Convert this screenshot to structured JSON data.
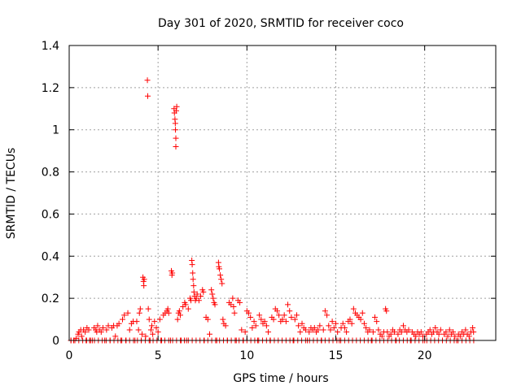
{
  "chart_data": {
    "type": "scatter",
    "title": "Day 301 of 2020, SRMTID for receiver coco",
    "xlabel": "GPS time / hours",
    "ylabel": "SRMTID / TECUs",
    "xlim": [
      0,
      24
    ],
    "ylim": [
      0,
      1.4
    ],
    "xticks": [
      0,
      5,
      10,
      15,
      20
    ],
    "xtick_labels": [
      "0",
      "5",
      "10",
      "15",
      "20"
    ],
    "yticks": [
      0,
      0.2,
      0.4,
      0.6,
      0.8,
      1,
      1.2,
      1.4
    ],
    "ytick_labels": [
      "0",
      "0.2",
      "0.4",
      "0.6",
      "0.8",
      "1",
      "1.2",
      "1.4"
    ],
    "grid": true,
    "marker": "+",
    "series": [
      {
        "name": "SRMTID",
        "color": "#ff0000",
        "points": [
          [
            0.1,
            0.0
          ],
          [
            0.25,
            0.0
          ],
          [
            0.4,
            0.01
          ],
          [
            0.5,
            0.03
          ],
          [
            0.55,
            0.04
          ],
          [
            0.65,
            0.05
          ],
          [
            0.7,
            0.02
          ],
          [
            0.8,
            0.05
          ],
          [
            0.9,
            0.04
          ],
          [
            0.95,
            0.0
          ],
          [
            1.0,
            0.06
          ],
          [
            1.1,
            0.05
          ],
          [
            1.15,
            0.0
          ],
          [
            1.3,
            0.0
          ],
          [
            1.4,
            0.06
          ],
          [
            1.5,
            0.05
          ],
          [
            1.55,
            0.04
          ],
          [
            1.6,
            0.07
          ],
          [
            1.7,
            0.05
          ],
          [
            1.8,
            0.04
          ],
          [
            1.9,
            0.06
          ],
          [
            2.0,
            0.0
          ],
          [
            2.1,
            0.05
          ],
          [
            2.2,
            0.07
          ],
          [
            2.3,
            0.0
          ],
          [
            2.4,
            0.06
          ],
          [
            2.5,
            0.07
          ],
          [
            2.6,
            0.02
          ],
          [
            2.7,
            0.07
          ],
          [
            2.8,
            0.08
          ],
          [
            2.9,
            0.0
          ],
          [
            3.0,
            0.1
          ],
          [
            3.1,
            0.12
          ],
          [
            3.2,
            0.0
          ],
          [
            3.3,
            0.13
          ],
          [
            3.4,
            0.05
          ],
          [
            3.5,
            0.08
          ],
          [
            3.6,
            0.09
          ],
          [
            3.7,
            0.0
          ],
          [
            3.8,
            0.09
          ],
          [
            3.9,
            0.05
          ],
          [
            3.95,
            0.13
          ],
          [
            4.0,
            0.15
          ],
          [
            4.05,
            0.0
          ],
          [
            4.1,
            0.03
          ],
          [
            4.15,
            0.3
          ],
          [
            4.18,
            0.28
          ],
          [
            4.2,
            0.26
          ],
          [
            4.22,
            0.29
          ],
          [
            4.3,
            0.02
          ],
          [
            4.4,
            1.235
          ],
          [
            4.42,
            1.16
          ],
          [
            4.45,
            0.15
          ],
          [
            4.5,
            0.1
          ],
          [
            4.55,
            0.0
          ],
          [
            4.6,
            0.05
          ],
          [
            4.65,
            0.07
          ],
          [
            4.7,
            0.03
          ],
          [
            4.8,
            0.09
          ],
          [
            4.9,
            0.06
          ],
          [
            5.0,
            0.04
          ],
          [
            5.1,
            0.1
          ],
          [
            5.2,
            0.0
          ],
          [
            5.3,
            0.12
          ],
          [
            5.4,
            0.13
          ],
          [
            5.5,
            0.14
          ],
          [
            5.55,
            0.15
          ],
          [
            5.6,
            0.13
          ],
          [
            5.7,
            0.0
          ],
          [
            5.75,
            0.33
          ],
          [
            5.78,
            0.31
          ],
          [
            5.8,
            0.32
          ],
          [
            5.9,
            1.1
          ],
          [
            5.92,
            1.08
          ],
          [
            5.95,
            1.05
          ],
          [
            5.97,
            1.03
          ],
          [
            5.98,
            1.0
          ],
          [
            6.0,
            0.96
          ],
          [
            6.0,
            0.92
          ],
          [
            6.02,
            1.09
          ],
          [
            6.05,
            1.11
          ],
          [
            6.1,
            0.1
          ],
          [
            6.15,
            0.13
          ],
          [
            6.2,
            0.14
          ],
          [
            6.25,
            0.12
          ],
          [
            6.3,
            0.0
          ],
          [
            6.4,
            0.16
          ],
          [
            6.5,
            0.18
          ],
          [
            6.55,
            0.17
          ],
          [
            6.6,
            0.0
          ],
          [
            6.7,
            0.15
          ],
          [
            6.8,
            0.2
          ],
          [
            6.85,
            0.19
          ],
          [
            6.9,
            0.38
          ],
          [
            6.92,
            0.36
          ],
          [
            6.95,
            0.32
          ],
          [
            6.97,
            0.29
          ],
          [
            7.0,
            0.26
          ],
          [
            7.02,
            0.23
          ],
          [
            7.05,
            0.21
          ],
          [
            7.1,
            0.19
          ],
          [
            7.15,
            0.2
          ],
          [
            7.2,
            0.22
          ],
          [
            7.3,
            0.19
          ],
          [
            7.4,
            0.21
          ],
          [
            7.5,
            0.24
          ],
          [
            7.55,
            0.23
          ],
          [
            7.6,
            0.0
          ],
          [
            7.7,
            0.11
          ],
          [
            7.8,
            0.1
          ],
          [
            7.9,
            0.03
          ],
          [
            8.0,
            0.24
          ],
          [
            8.05,
            0.22
          ],
          [
            8.1,
            0.2
          ],
          [
            8.15,
            0.18
          ],
          [
            8.2,
            0.17
          ],
          [
            8.3,
            0.0
          ],
          [
            8.4,
            0.37
          ],
          [
            8.42,
            0.35
          ],
          [
            8.45,
            0.34
          ],
          [
            8.5,
            0.31
          ],
          [
            8.55,
            0.29
          ],
          [
            8.6,
            0.27
          ],
          [
            8.65,
            0.1
          ],
          [
            8.7,
            0.08
          ],
          [
            8.8,
            0.07
          ],
          [
            8.9,
            0.0
          ],
          [
            9.0,
            0.18
          ],
          [
            9.1,
            0.17
          ],
          [
            9.2,
            0.2
          ],
          [
            9.25,
            0.16
          ],
          [
            9.3,
            0.13
          ],
          [
            9.4,
            0.0
          ],
          [
            9.5,
            0.19
          ],
          [
            9.6,
            0.18
          ],
          [
            9.7,
            0.05
          ],
          [
            9.8,
            0.0
          ],
          [
            9.9,
            0.04
          ],
          [
            10.0,
            0.14
          ],
          [
            10.1,
            0.13
          ],
          [
            10.2,
            0.11
          ],
          [
            10.3,
            0.06
          ],
          [
            10.4,
            0.09
          ],
          [
            10.5,
            0.07
          ],
          [
            10.6,
            0.0
          ],
          [
            10.7,
            0.12
          ],
          [
            10.8,
            0.1
          ],
          [
            10.9,
            0.08
          ],
          [
            11.0,
            0.09
          ],
          [
            11.1,
            0.07
          ],
          [
            11.2,
            0.04
          ],
          [
            11.3,
            0.0
          ],
          [
            11.4,
            0.11
          ],
          [
            11.5,
            0.1
          ],
          [
            11.6,
            0.15
          ],
          [
            11.7,
            0.14
          ],
          [
            11.8,
            0.12
          ],
          [
            11.9,
            0.09
          ],
          [
            12.0,
            0.1
          ],
          [
            12.1,
            0.12
          ],
          [
            12.2,
            0.09
          ],
          [
            12.3,
            0.17
          ],
          [
            12.4,
            0.14
          ],
          [
            12.5,
            0.11
          ],
          [
            12.6,
            0.0
          ],
          [
            12.7,
            0.1
          ],
          [
            12.8,
            0.12
          ],
          [
            12.9,
            0.07
          ],
          [
            13.0,
            0.04
          ],
          [
            13.1,
            0.08
          ],
          [
            13.2,
            0.06
          ],
          [
            13.3,
            0.05
          ],
          [
            13.4,
            0.0
          ],
          [
            13.5,
            0.04
          ],
          [
            13.6,
            0.06
          ],
          [
            13.7,
            0.05
          ],
          [
            13.8,
            0.06
          ],
          [
            13.9,
            0.04
          ],
          [
            14.0,
            0.05
          ],
          [
            14.1,
            0.07
          ],
          [
            14.2,
            0.0
          ],
          [
            14.3,
            0.05
          ],
          [
            14.4,
            0.14
          ],
          [
            14.5,
            0.12
          ],
          [
            14.6,
            0.07
          ],
          [
            14.7,
            0.05
          ],
          [
            14.8,
            0.09
          ],
          [
            14.9,
            0.06
          ],
          [
            15.0,
            0.08
          ],
          [
            15.1,
            0.04
          ],
          [
            15.2,
            0.0
          ],
          [
            15.3,
            0.06
          ],
          [
            15.4,
            0.08
          ],
          [
            15.5,
            0.06
          ],
          [
            15.6,
            0.04
          ],
          [
            15.7,
            0.09
          ],
          [
            15.8,
            0.1
          ],
          [
            15.9,
            0.08
          ],
          [
            16.0,
            0.15
          ],
          [
            16.1,
            0.13
          ],
          [
            16.2,
            0.12
          ],
          [
            16.3,
            0.11
          ],
          [
            16.4,
            0.1
          ],
          [
            16.5,
            0.13
          ],
          [
            16.6,
            0.08
          ],
          [
            16.7,
            0.06
          ],
          [
            16.8,
            0.04
          ],
          [
            16.9,
            0.05
          ],
          [
            17.0,
            0.0
          ],
          [
            17.1,
            0.04
          ],
          [
            17.2,
            0.11
          ],
          [
            17.3,
            0.09
          ],
          [
            17.4,
            0.05
          ],
          [
            17.5,
            0.03
          ],
          [
            17.6,
            0.02
          ],
          [
            17.7,
            0.04
          ],
          [
            17.8,
            0.15
          ],
          [
            17.85,
            0.14
          ],
          [
            17.9,
            0.04
          ],
          [
            18.0,
            0.02
          ],
          [
            18.1,
            0.03
          ],
          [
            18.2,
            0.05
          ],
          [
            18.3,
            0.04
          ],
          [
            18.4,
            0.0
          ],
          [
            18.5,
            0.03
          ],
          [
            18.6,
            0.05
          ],
          [
            18.7,
            0.04
          ],
          [
            18.8,
            0.07
          ],
          [
            18.9,
            0.05
          ],
          [
            19.0,
            0.04
          ],
          [
            19.1,
            0.05
          ],
          [
            19.2,
            0.0
          ],
          [
            19.3,
            0.04
          ],
          [
            19.4,
            0.03
          ],
          [
            19.5,
            0.02
          ],
          [
            19.6,
            0.04
          ],
          [
            19.7,
            0.03
          ],
          [
            19.8,
            0.04
          ],
          [
            19.9,
            0.02
          ],
          [
            20.0,
            0.0
          ],
          [
            20.1,
            0.03
          ],
          [
            20.2,
            0.04
          ],
          [
            20.3,
            0.05
          ],
          [
            20.4,
            0.03
          ],
          [
            20.5,
            0.04
          ],
          [
            20.6,
            0.06
          ],
          [
            20.7,
            0.04
          ],
          [
            20.8,
            0.03
          ],
          [
            20.9,
            0.05
          ],
          [
            21.0,
            0.0
          ],
          [
            21.1,
            0.03
          ],
          [
            21.2,
            0.04
          ],
          [
            21.3,
            0.02
          ],
          [
            21.4,
            0.05
          ],
          [
            21.5,
            0.03
          ],
          [
            21.6,
            0.04
          ],
          [
            21.7,
            0.02
          ],
          [
            21.8,
            0.0
          ],
          [
            21.9,
            0.03
          ],
          [
            22.0,
            0.02
          ],
          [
            22.1,
            0.04
          ],
          [
            22.2,
            0.03
          ],
          [
            22.3,
            0.05
          ],
          [
            22.4,
            0.03
          ],
          [
            22.5,
            0.02
          ],
          [
            22.6,
            0.04
          ],
          [
            22.7,
            0.06
          ],
          [
            22.75,
            0.04
          ]
        ],
        "zero_x_range": [
          0.1,
          22.8
        ],
        "zero_step": 0.22
      }
    ]
  }
}
